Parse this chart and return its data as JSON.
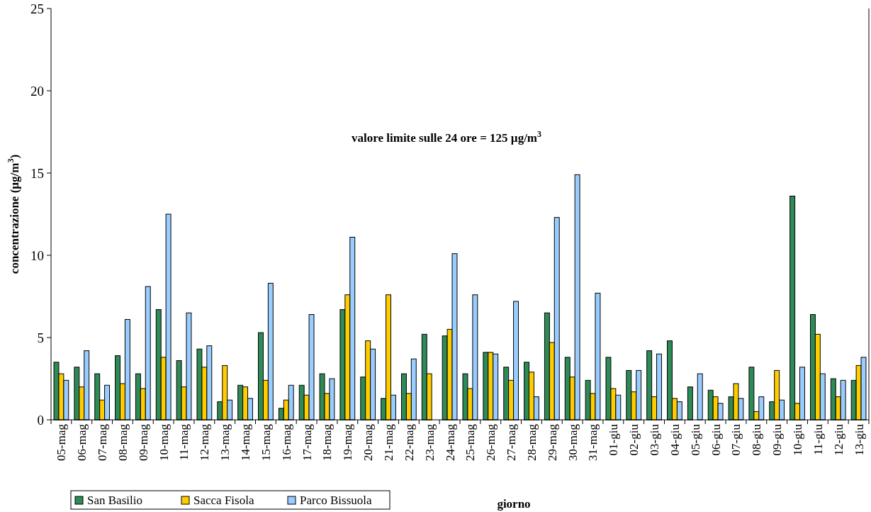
{
  "chart_data": {
    "type": "bar",
    "xlabel": "giorno",
    "ylabel": "concentrazione (µg/m$^{3}$)",
    "annotations": [
      "valore limite sulle 24 ore = 125 µg/m$^{3}$"
    ],
    "categories": [
      "05-mag",
      "06-mag",
      "07-mag",
      "08-mag",
      "09-mag",
      "10-mag",
      "11-mag",
      "12-mag",
      "13-mag",
      "14-mag",
      "15-mag",
      "16-mag",
      "17-mag",
      "18-mag",
      "19-mag",
      "20-mag",
      "21-mag",
      "22-mag",
      "23-mag",
      "24-mag",
      "25-mag",
      "26-mag",
      "27-mag",
      "28-mag",
      "29-mag",
      "30-mag",
      "31-mag",
      "01-giu",
      "02-giu",
      "03-giu",
      "04-giu",
      "05-giu",
      "06-giu",
      "07-giu",
      "08-giu",
      "09-giu",
      "10-giu",
      "11-giu",
      "12-giu",
      "13-giu"
    ],
    "series": [
      {
        "name": "San Basilio",
        "color": "#2e8b57",
        "values": [
          3.5,
          3.2,
          2.8,
          3.9,
          2.8,
          6.7,
          3.6,
          4.3,
          1.1,
          2.1,
          5.3,
          0.7,
          2.1,
          2.8,
          6.7,
          2.6,
          1.3,
          2.8,
          5.2,
          5.1,
          2.8,
          4.1,
          3.2,
          3.5,
          6.5,
          3.8,
          2.4,
          3.8,
          3.0,
          4.2,
          4.8,
          2.0,
          1.8,
          1.4,
          3.2,
          1.1,
          13.6,
          6.4,
          2.5,
          2.4
        ]
      },
      {
        "name": "Sacca Fisola",
        "color": "#ffcc00",
        "values": [
          2.8,
          2.0,
          1.2,
          2.2,
          1.9,
          3.8,
          2.0,
          3.2,
          3.3,
          2.0,
          2.4,
          1.2,
          1.5,
          1.6,
          7.6,
          4.8,
          7.6,
          1.6,
          2.8,
          5.5,
          1.9,
          4.1,
          2.4,
          2.9,
          4.7,
          2.6,
          1.6,
          1.9,
          1.7,
          1.4,
          1.3,
          null,
          1.4,
          2.2,
          0.5,
          3.0,
          1.0,
          5.2,
          1.4,
          3.3
        ]
      },
      {
        "name": "Parco Bissuola",
        "color": "#99ccff",
        "values": [
          2.4,
          4.2,
          2.1,
          6.1,
          8.1,
          12.5,
          6.5,
          4.5,
          1.2,
          1.3,
          8.3,
          2.1,
          6.4,
          2.5,
          11.1,
          4.3,
          1.5,
          3.7,
          null,
          10.1,
          7.6,
          4.0,
          7.2,
          1.4,
          12.3,
          14.9,
          7.7,
          1.5,
          3.0,
          4.0,
          1.1,
          2.8,
          1.0,
          1.3,
          1.4,
          1.2,
          3.2,
          2.8,
          2.4,
          3.8
        ]
      }
    ],
    "ylim": [
      0,
      25
    ],
    "yticks": [
      0,
      5,
      10,
      15,
      20,
      25
    ],
    "grid": false,
    "legend": "bottom left"
  }
}
